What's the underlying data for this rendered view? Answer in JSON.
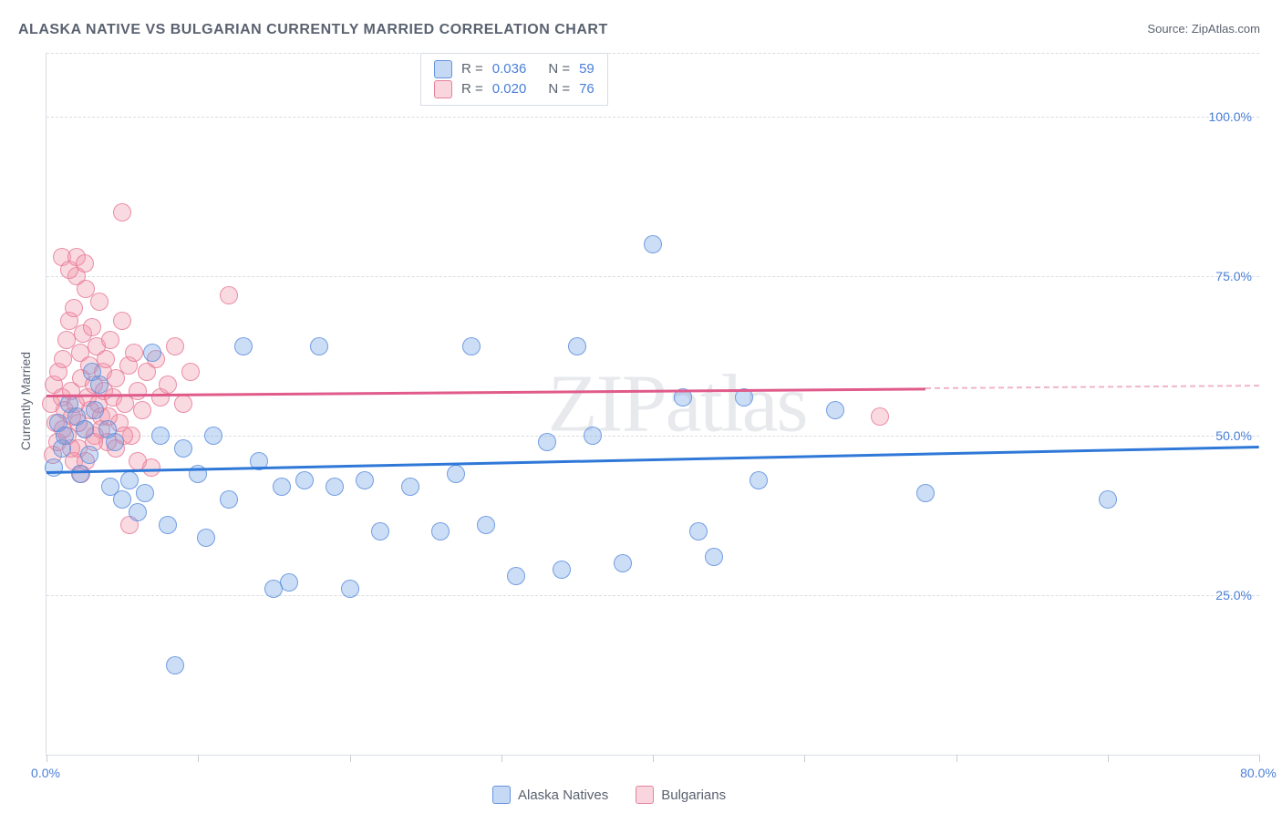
{
  "title": "ALASKA NATIVE VS BULGARIAN CURRENTLY MARRIED CORRELATION CHART",
  "source_label": "Source:",
  "source_name": "ZipAtlas.com",
  "watermark": "ZIPatlas",
  "y_axis_label": "Currently Married",
  "chart": {
    "type": "scatter",
    "xlim": [
      0,
      80
    ],
    "ylim": [
      0,
      110
    ],
    "x_ticks": [
      0,
      10,
      20,
      30,
      40,
      50,
      60,
      70,
      80
    ],
    "x_tick_labels": {
      "0": "0.0%",
      "80": "80.0%"
    },
    "y_gridlines": [
      25,
      50,
      75,
      100,
      110
    ],
    "y_tick_labels": {
      "25": "25.0%",
      "50": "50.0%",
      "75": "75.0%",
      "100": "100.0%"
    },
    "background_color": "#ffffff",
    "grid_color": "#d8dde4",
    "grid_dash": true,
    "axis_color": "#d8dde4",
    "tick_label_color": "#4a7fd8",
    "point_radius": 9,
    "series": [
      {
        "name": "Alaska Natives",
        "fill": "rgba(110,160,230,0.35)",
        "stroke": "rgba(90,140,220,0.8)",
        "R": "0.036",
        "N": "59",
        "trend": {
          "y_at_x0": 44.5,
          "y_at_x80": 48.5,
          "x_data_max": 80,
          "color": "#2f78d8"
        },
        "points": [
          [
            0.5,
            45
          ],
          [
            0.8,
            52
          ],
          [
            1.0,
            48
          ],
          [
            1.2,
            50
          ],
          [
            1.5,
            55
          ],
          [
            2.0,
            53
          ],
          [
            2.2,
            44
          ],
          [
            2.5,
            51
          ],
          [
            2.8,
            47
          ],
          [
            3.0,
            60
          ],
          [
            3.2,
            54
          ],
          [
            3.5,
            58
          ],
          [
            4.0,
            51
          ],
          [
            4.2,
            42
          ],
          [
            4.5,
            49
          ],
          [
            5.0,
            40
          ],
          [
            5.5,
            43
          ],
          [
            6.0,
            38
          ],
          [
            6.5,
            41
          ],
          [
            7.0,
            63
          ],
          [
            7.5,
            50
          ],
          [
            8.0,
            36
          ],
          [
            8.5,
            14
          ],
          [
            9.0,
            48
          ],
          [
            10.0,
            44
          ],
          [
            10.5,
            34
          ],
          [
            11.0,
            50
          ],
          [
            12.0,
            40
          ],
          [
            13.0,
            64
          ],
          [
            14.0,
            46
          ],
          [
            15.0,
            26
          ],
          [
            15.5,
            42
          ],
          [
            16.0,
            27
          ],
          [
            17.0,
            43
          ],
          [
            18.0,
            64
          ],
          [
            19.0,
            42
          ],
          [
            20.0,
            26
          ],
          [
            21.0,
            43
          ],
          [
            22.0,
            35
          ],
          [
            24.0,
            42
          ],
          [
            26.0,
            35
          ],
          [
            27.0,
            44
          ],
          [
            28.0,
            64
          ],
          [
            29.0,
            36
          ],
          [
            31.0,
            28
          ],
          [
            33.0,
            49
          ],
          [
            34.0,
            29
          ],
          [
            35.0,
            64
          ],
          [
            36.0,
            50
          ],
          [
            38.0,
            30
          ],
          [
            40.0,
            80
          ],
          [
            42.0,
            56
          ],
          [
            43.0,
            35
          ],
          [
            44.0,
            31
          ],
          [
            46.0,
            56
          ],
          [
            47.0,
            43
          ],
          [
            52.0,
            54
          ],
          [
            58.0,
            41
          ],
          [
            70.0,
            40
          ]
        ]
      },
      {
        "name": "Bulgarians",
        "fill": "rgba(240,150,170,0.35)",
        "stroke": "rgba(230,120,150,0.8)",
        "R": "0.020",
        "N": "76",
        "trend": {
          "y_at_x0": 56.5,
          "y_at_x80": 58.0,
          "x_data_max": 58,
          "color": "#e05a8a"
        },
        "points": [
          [
            0.3,
            55
          ],
          [
            0.5,
            58
          ],
          [
            0.6,
            52
          ],
          [
            0.8,
            60
          ],
          [
            1.0,
            56
          ],
          [
            1.1,
            62
          ],
          [
            1.2,
            54
          ],
          [
            1.3,
            65
          ],
          [
            1.4,
            50
          ],
          [
            1.5,
            68
          ],
          [
            1.6,
            57
          ],
          [
            1.7,
            53
          ],
          [
            1.8,
            70
          ],
          [
            1.9,
            55
          ],
          [
            2.0,
            75
          ],
          [
            2.1,
            48
          ],
          [
            2.2,
            63
          ],
          [
            2.3,
            59
          ],
          [
            2.4,
            66
          ],
          [
            2.5,
            51
          ],
          [
            2.6,
            73
          ],
          [
            2.7,
            56
          ],
          [
            2.8,
            61
          ],
          [
            2.9,
            54
          ],
          [
            3.0,
            67
          ],
          [
            3.1,
            58
          ],
          [
            3.2,
            50
          ],
          [
            3.3,
            64
          ],
          [
            3.4,
            55
          ],
          [
            3.5,
            71
          ],
          [
            3.6,
            53
          ],
          [
            3.7,
            60
          ],
          [
            3.8,
            57
          ],
          [
            3.9,
            62
          ],
          [
            4.0,
            49
          ],
          [
            4.2,
            65
          ],
          [
            4.4,
            56
          ],
          [
            4.6,
            59
          ],
          [
            4.8,
            52
          ],
          [
            5.0,
            68
          ],
          [
            5.2,
            55
          ],
          [
            5.4,
            61
          ],
          [
            5.6,
            50
          ],
          [
            5.8,
            63
          ],
          [
            6.0,
            57
          ],
          [
            6.3,
            54
          ],
          [
            6.6,
            60
          ],
          [
            6.9,
            45
          ],
          [
            7.2,
            62
          ],
          [
            7.5,
            56
          ],
          [
            5.0,
            85
          ],
          [
            5.5,
            36
          ],
          [
            6.0,
            46
          ],
          [
            8.0,
            58
          ],
          [
            8.5,
            64
          ],
          [
            9.0,
            55
          ],
          [
            9.5,
            60
          ],
          [
            12.0,
            72
          ],
          [
            55.0,
            53
          ],
          [
            1.0,
            78
          ],
          [
            1.5,
            76
          ],
          [
            2.0,
            78
          ],
          [
            2.5,
            77
          ],
          [
            1.8,
            46
          ],
          [
            2.3,
            44
          ],
          [
            0.4,
            47
          ],
          [
            0.7,
            49
          ],
          [
            1.1,
            51
          ],
          [
            1.6,
            48
          ],
          [
            2.1,
            52
          ],
          [
            2.6,
            46
          ],
          [
            3.1,
            49
          ],
          [
            3.6,
            51
          ],
          [
            4.1,
            53
          ],
          [
            4.6,
            48
          ],
          [
            5.1,
            50
          ]
        ]
      }
    ]
  },
  "legend_bottom": [
    "Alaska Natives",
    "Bulgarians"
  ],
  "stats_legend": {
    "R_label": "R =",
    "N_label": "N ="
  }
}
